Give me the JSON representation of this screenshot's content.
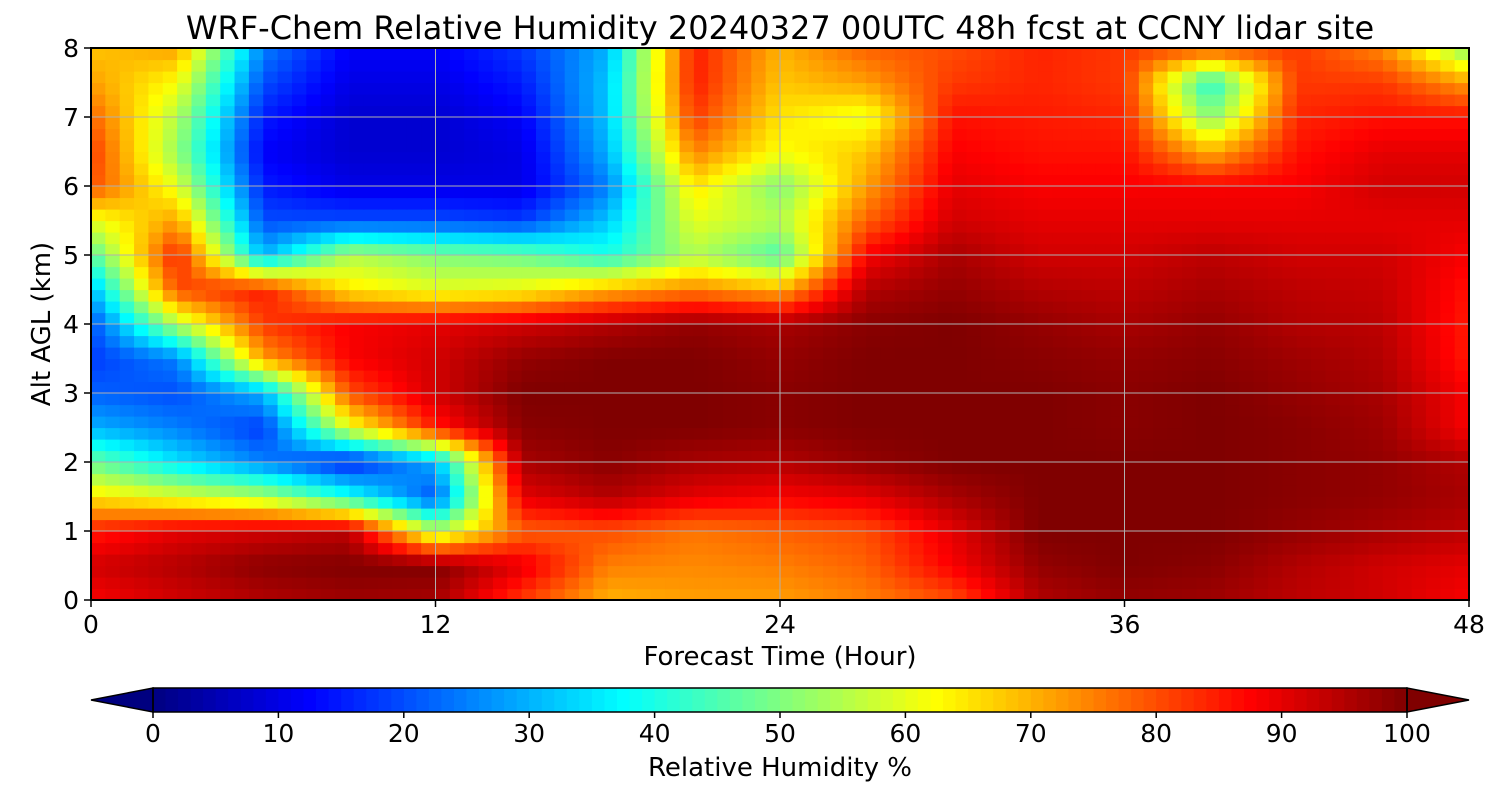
{
  "chart_data": {
    "type": "heatmap",
    "title": "WRF-Chem Relative Humidity 20240327 00UTC 48h fcst at CCNY lidar site",
    "xlabel": "Forecast Time (Hour)",
    "ylabel": "Alt AGL (km)",
    "xlim": [
      0,
      48
    ],
    "ylim": [
      0,
      8
    ],
    "x_ticks": [
      "0",
      "12",
      "24",
      "36",
      "48"
    ],
    "y_ticks": [
      "0",
      "1",
      "2",
      "3",
      "4",
      "5",
      "6",
      "7",
      "8"
    ],
    "grid": true,
    "colormap": "jet",
    "colorbar": {
      "label": "Relative Humidity %",
      "range": [
        0,
        100
      ],
      "ticks": [
        "0",
        "10",
        "20",
        "30",
        "40",
        "50",
        "60",
        "70",
        "80",
        "90",
        "100"
      ],
      "extend": "both",
      "orientation": "horizontal"
    },
    "time_hours": [
      0,
      3,
      6,
      9,
      12,
      15,
      18,
      21,
      24,
      27,
      30,
      33,
      36,
      39,
      42,
      45,
      48
    ],
    "altitudes_km": [
      0,
      0.5,
      1,
      1.5,
      2,
      2.5,
      3,
      3.5,
      4,
      4.5,
      5,
      5.5,
      6,
      6.5,
      7,
      7.5,
      8
    ],
    "values": [
      [
        88,
        92,
        95,
        97,
        96,
        82,
        70,
        72,
        72,
        75,
        80,
        95,
        98,
        97,
        94,
        92,
        88
      ],
      [
        92,
        95,
        99,
        100,
        100,
        90,
        75,
        74,
        75,
        78,
        88,
        98,
        100,
        99,
        95,
        92,
        90
      ],
      [
        85,
        90,
        92,
        94,
        55,
        78,
        80,
        76,
        78,
        80,
        90,
        100,
        100,
        100,
        98,
        96,
        94
      ],
      [
        65,
        60,
        55,
        40,
        20,
        90,
        95,
        90,
        88,
        90,
        96,
        100,
        100,
        100,
        99,
        98,
        96
      ],
      [
        48,
        35,
        25,
        15,
        30,
        96,
        99,
        96,
        95,
        98,
        100,
        100,
        100,
        100,
        99,
        98,
        95
      ],
      [
        30,
        25,
        18,
        60,
        85,
        99,
        100,
        100,
        99,
        100,
        100,
        100,
        99,
        100,
        99,
        97,
        88
      ],
      [
        22,
        20,
        30,
        80,
        92,
        100,
        100,
        100,
        99,
        100,
        100,
        100,
        99,
        100,
        98,
        96,
        88
      ],
      [
        18,
        25,
        72,
        88,
        92,
        98,
        100,
        100,
        98,
        100,
        100,
        99,
        98,
        99,
        97,
        95,
        85
      ],
      [
        20,
        55,
        82,
        88,
        90,
        92,
        95,
        98,
        96,
        99,
        100,
        98,
        96,
        98,
        95,
        94,
        85
      ],
      [
        30,
        80,
        85,
        65,
        60,
        62,
        70,
        75,
        70,
        95,
        98,
        95,
        94,
        96,
        94,
        93,
        86
      ],
      [
        45,
        85,
        30,
        55,
        50,
        48,
        40,
        55,
        45,
        88,
        96,
        92,
        92,
        94,
        92,
        92,
        88
      ],
      [
        60,
        72,
        20,
        20,
        20,
        18,
        32,
        60,
        55,
        78,
        92,
        90,
        90,
        90,
        90,
        90,
        90
      ],
      [
        80,
        60,
        15,
        10,
        10,
        10,
        25,
        65,
        50,
        72,
        90,
        88,
        88,
        88,
        88,
        92,
        92
      ],
      [
        82,
        52,
        12,
        8,
        8,
        10,
        30,
        75,
        62,
        68,
        88,
        86,
        86,
        70,
        86,
        90,
        90
      ],
      [
        78,
        55,
        15,
        8,
        8,
        12,
        32,
        82,
        65,
        60,
        86,
        85,
        84,
        50,
        84,
        86,
        86
      ],
      [
        72,
        62,
        20,
        10,
        10,
        15,
        32,
        85,
        68,
        72,
        82,
        84,
        82,
        40,
        82,
        82,
        72
      ],
      [
        68,
        72,
        25,
        12,
        12,
        18,
        30,
        85,
        70,
        78,
        80,
        84,
        82,
        80,
        82,
        74,
        50
      ]
    ]
  }
}
